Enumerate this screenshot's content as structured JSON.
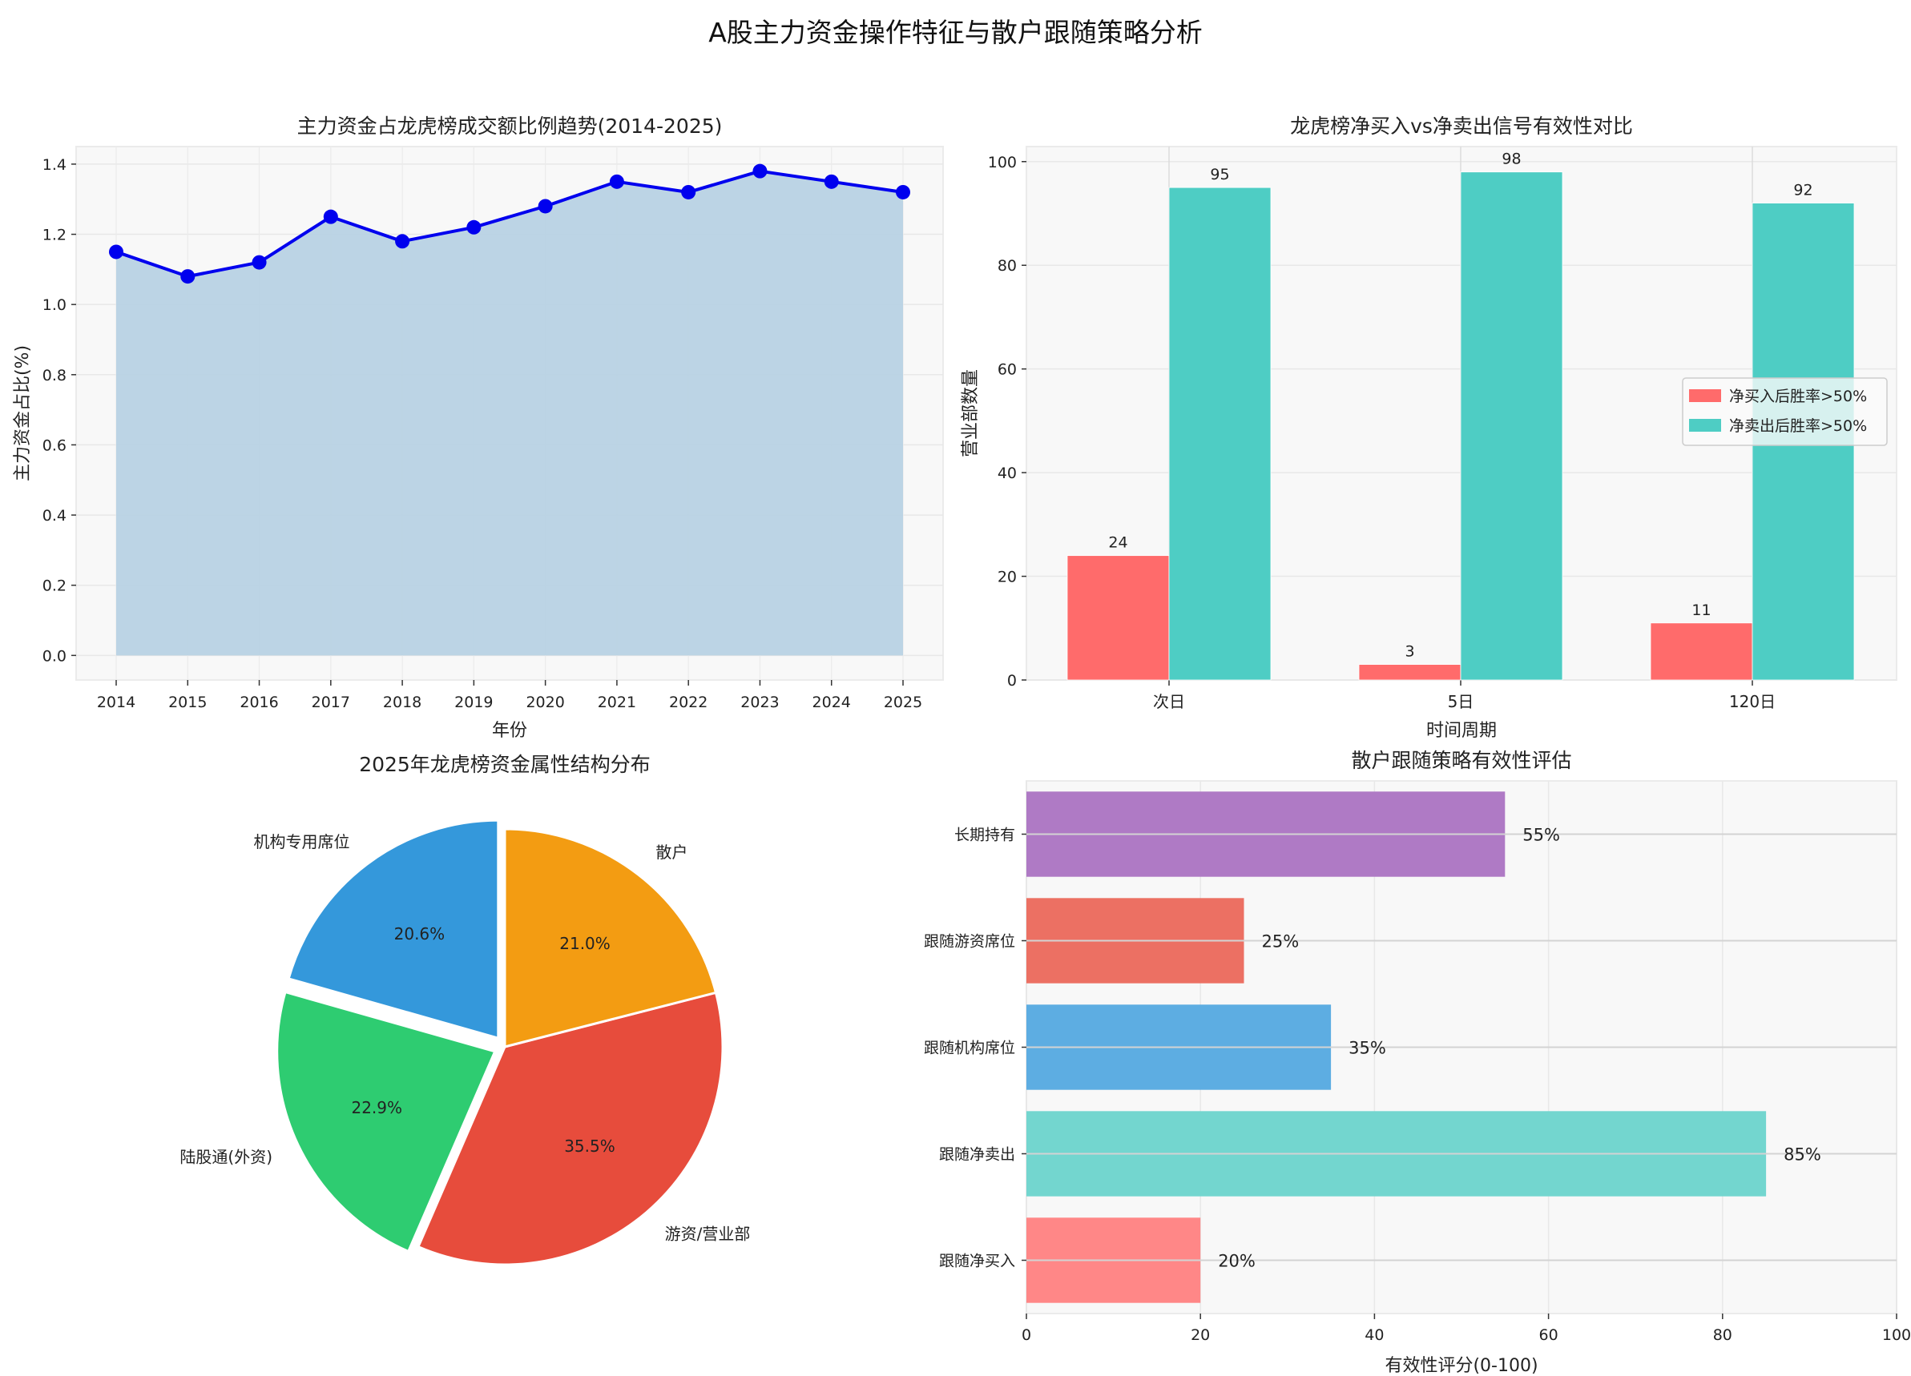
{
  "figure": {
    "title": "A股主力资金操作特征与散户跟随策略分析"
  },
  "chart_data": [
    {
      "type": "line",
      "id": "trend",
      "title": "主力资金占龙虎榜成交额比例趋势(2014-2025)",
      "xlabel": "年份",
      "ylabel": "主力资金占比(%)",
      "x": [
        2014,
        2015,
        2016,
        2017,
        2018,
        2019,
        2020,
        2021,
        2022,
        2023,
        2024,
        2025
      ],
      "values": [
        1.15,
        1.08,
        1.12,
        1.25,
        1.18,
        1.22,
        1.28,
        1.35,
        1.32,
        1.38,
        1.35,
        1.32
      ],
      "yticks": [
        "0.0",
        "0.2",
        "0.4",
        "0.6",
        "0.8",
        "1.0",
        "1.2",
        "1.4"
      ],
      "ylim": [
        -0.07,
        1.45
      ],
      "fill": "area under line",
      "grid": true,
      "colors": {
        "line": "#0000ee",
        "fill": "#b8d2e4"
      }
    },
    {
      "type": "bar",
      "id": "signal",
      "title": "龙虎榜净买入vs净卖出信号有效性对比",
      "xlabel": "时间周期",
      "ylabel": "营业部数量",
      "categories": [
        "次日",
        "5日",
        "120日"
      ],
      "series": [
        {
          "name": "净买入后胜率>50%",
          "values": [
            24,
            3,
            11
          ],
          "color": "#ff6b6b"
        },
        {
          "name": "净卖出后胜率>50%",
          "values": [
            95,
            98,
            92
          ],
          "color": "#4ecdc4"
        }
      ],
      "yticks": [
        "0",
        "20",
        "40",
        "60",
        "80",
        "100"
      ],
      "ylim": [
        0,
        102.9
      ],
      "legend_position": "center right",
      "grid": true
    },
    {
      "type": "pie",
      "id": "structure",
      "title": "2025年龙虎榜资金属性结构分布",
      "labels": [
        "机构专用席位",
        "陆股通(外资)",
        "游资/营业部",
        "散户"
      ],
      "values": [
        20.6,
        22.9,
        35.5,
        21.0
      ],
      "pct_labels": [
        "20.6%",
        "22.9%",
        "35.5%",
        "21.0%"
      ],
      "colors": [
        "#3498db",
        "#2ecc71",
        "#e74c3c",
        "#f39c12"
      ],
      "explode": [
        0.05,
        0.05,
        0,
        0
      ],
      "startangle": 90
    },
    {
      "type": "bar",
      "orientation": "horizontal",
      "id": "strategy",
      "title": "散户跟随策略有效性评估",
      "xlabel": "有效性评分(0-100)",
      "ylabel": "",
      "categories": [
        "跟随净买入",
        "跟随净卖出",
        "跟随机构席位",
        "跟随游资席位",
        "长期持有"
      ],
      "values": [
        20,
        85,
        35,
        25,
        55
      ],
      "value_labels": [
        "20%",
        "85%",
        "35%",
        "25%",
        "55%"
      ],
      "colors": [
        "#ff8787",
        "#73d6cf",
        "#5dade2",
        "#ec7063",
        "#af7ac5"
      ],
      "xticks": [
        "0",
        "20",
        "40",
        "60",
        "80",
        "100"
      ],
      "xlim": [
        0,
        100
      ],
      "grid": true
    }
  ]
}
